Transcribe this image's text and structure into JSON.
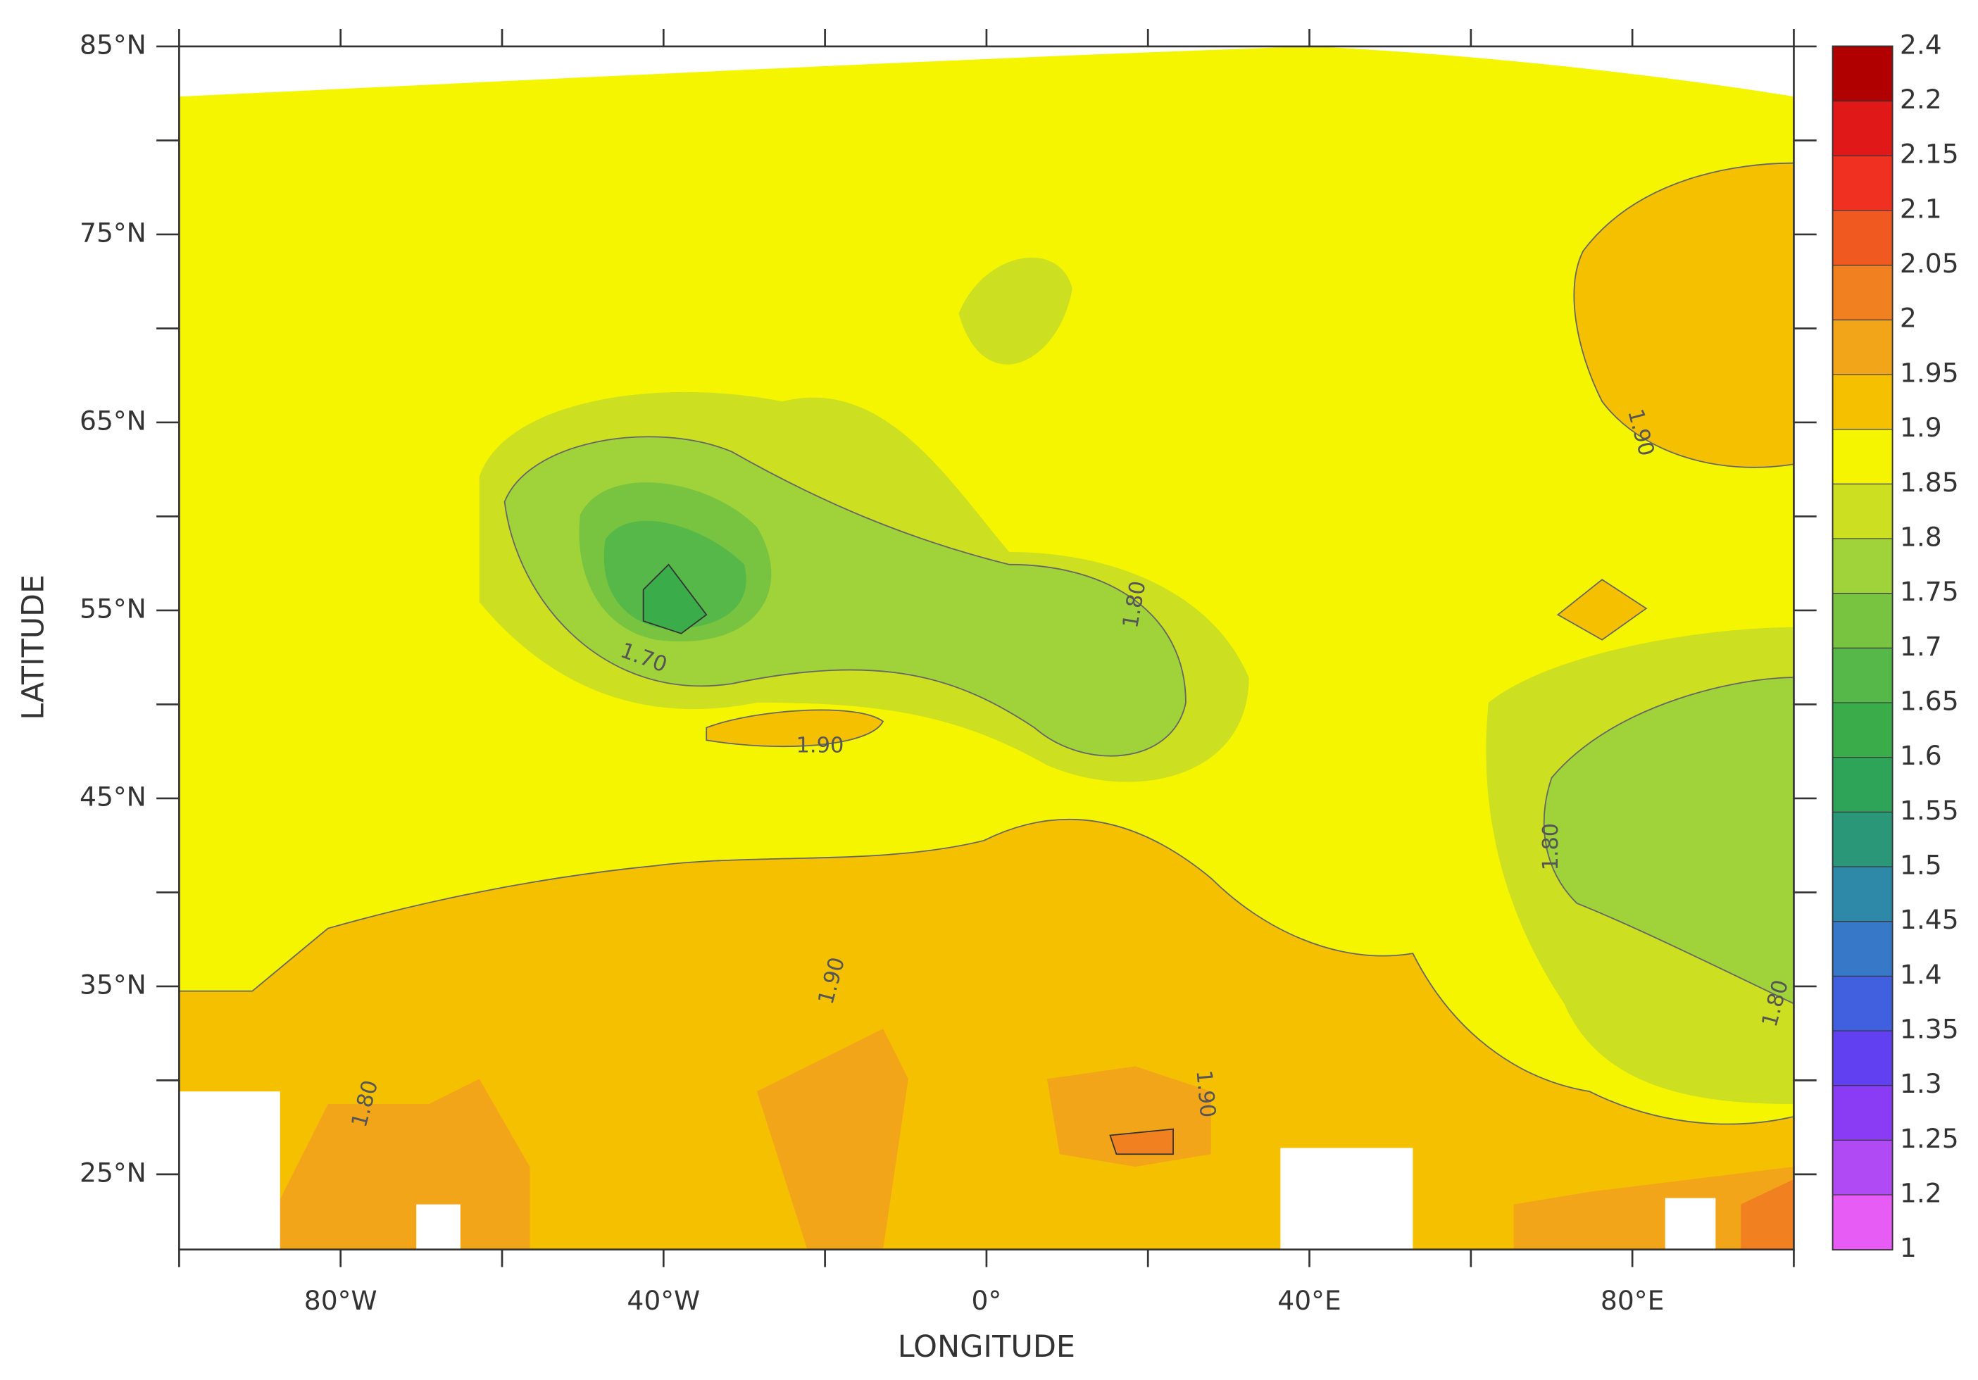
{
  "chart_data": {
    "type": "contour-map",
    "xlabel": "LONGITUDE",
    "ylabel": "LATITUDE",
    "xlim": [
      -100,
      100
    ],
    "ylim": [
      21,
      85
    ],
    "xticks": [
      {
        "value": -80,
        "label": "80°W"
      },
      {
        "value": -40,
        "label": "40°W"
      },
      {
        "value": 0,
        "label": "0°"
      },
      {
        "value": 40,
        "label": "40°E"
      },
      {
        "value": 80,
        "label": "80°E"
      }
    ],
    "xminorticks": [
      -100,
      -60,
      -20,
      20,
      60,
      100
    ],
    "yticks": [
      {
        "value": 85,
        "label": "85°N"
      },
      {
        "value": 75,
        "label": "75°N"
      },
      {
        "value": 65,
        "label": "65°N"
      },
      {
        "value": 55,
        "label": "55°N"
      },
      {
        "value": 45,
        "label": "45°N"
      },
      {
        "value": 35,
        "label": "35°N"
      },
      {
        "value": 25,
        "label": "25°N"
      }
    ],
    "yminorticks": [
      80,
      70,
      60,
      50,
      40,
      30
    ],
    "colorbar": {
      "levels": [
        1,
        1.2,
        1.25,
        1.3,
        1.35,
        1.4,
        1.45,
        1.5,
        1.55,
        1.6,
        1.65,
        1.7,
        1.75,
        1.8,
        1.85,
        1.9,
        1.95,
        2,
        2.05,
        2.1,
        2.15,
        2.2,
        2.4
      ],
      "colors": [
        "#e65cf5",
        "#b04af5",
        "#8a3cf5",
        "#6040f0",
        "#4060e0",
        "#3878c8",
        "#2e88a8",
        "#2a9878",
        "#2ea458",
        "#3aad4a",
        "#55b848",
        "#78c440",
        "#a0d23a",
        "#ccdf20",
        "#f5f500",
        "#f5c000",
        "#f3a51a",
        "#f08020",
        "#f05a20",
        "#f03020",
        "#e01818",
        "#b00000"
      ]
    },
    "contour_labels": [
      {
        "value": 1.9,
        "label": "1.90"
      },
      {
        "value": 1.7,
        "label": "1.70"
      },
      {
        "value": 1.9,
        "label": "1.90"
      },
      {
        "value": 1.8,
        "label": "1.80"
      },
      {
        "value": 1.8,
        "label": "1.80"
      },
      {
        "value": 1.9,
        "label": "1.90"
      },
      {
        "value": 1.8,
        "label": "1.80"
      },
      {
        "value": 1.9,
        "label": "1.90"
      },
      {
        "value": 1.8,
        "label": "1.80"
      }
    ]
  }
}
